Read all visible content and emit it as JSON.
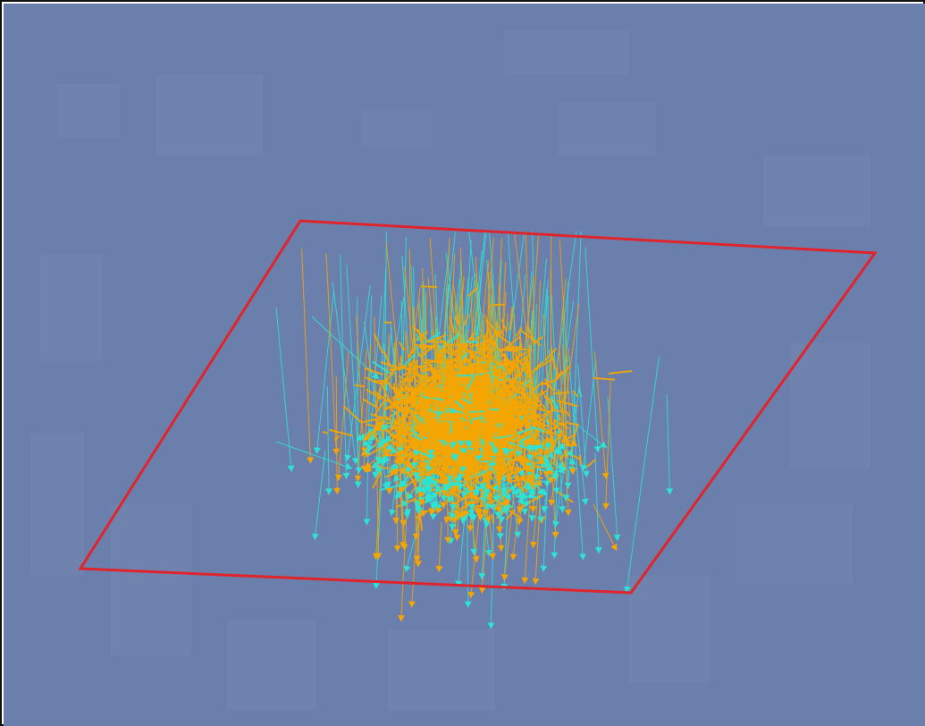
{
  "scene": {
    "colors": {
      "background": "#6b7fac",
      "background_ghost": "#7a8bb3",
      "plane_outline": "#e0242c",
      "vectors_primary": "#f5a500",
      "vectors_secondary": "#2de3d2"
    },
    "plane": {
      "shape": "parallelogram",
      "outline_only": true
    },
    "vector_field": {
      "primary_color_name": "orange",
      "secondary_color_name": "cyan",
      "arrow_heads": true,
      "dense_core": true
    }
  }
}
